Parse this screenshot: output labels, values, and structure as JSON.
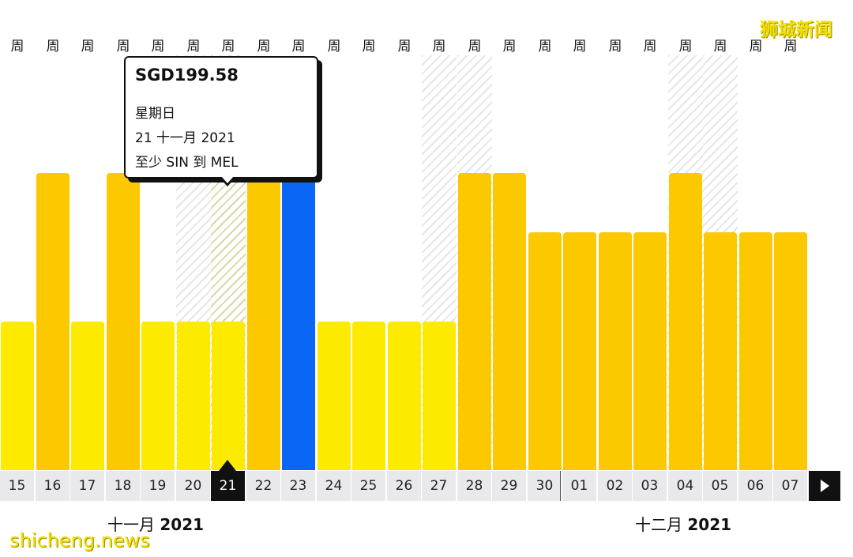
{
  "week_header_label": "周",
  "tooltip": {
    "price": "SGD199.58",
    "weekday": "星期日",
    "date": "21 十一月 2021",
    "route": "至少 SIN 到 MEL"
  },
  "months": [
    {
      "name": "十一月",
      "year": "2021"
    },
    {
      "name": "十二月",
      "year": "2021"
    }
  ],
  "watermarks": {
    "top_right": "狮城新闻",
    "bottom_left": "shicheng.news"
  },
  "colors": {
    "cheap": "#fcea00",
    "mid": "#fcc800",
    "selected": "#0a66f5",
    "selected_cap": "#9cc0f5"
  },
  "chart_data": {
    "type": "bar",
    "categories": [
      "15",
      "16",
      "17",
      "18",
      "19",
      "20",
      "21",
      "22",
      "23",
      "24",
      "25",
      "26",
      "27",
      "28",
      "29",
      "30",
      "01",
      "02",
      "03",
      "04",
      "05",
      "06",
      "07"
    ],
    "values": [
      1,
      2,
      1,
      2,
      1,
      1,
      1,
      2,
      2,
      1,
      1,
      1,
      1,
      2,
      2,
      1.6,
      1.6,
      1.6,
      1.6,
      2,
      1.6,
      1.6,
      1.6
    ],
    "tiers": [
      "cheap",
      "mid",
      "cheap",
      "mid",
      "cheap",
      "cheap",
      "cheap",
      "mid",
      "selected",
      "cheap",
      "cheap",
      "cheap",
      "cheap",
      "mid",
      "mid",
      "mid",
      "mid",
      "mid",
      "mid",
      "mid",
      "mid",
      "mid",
      "mid"
    ],
    "hatched": [
      "20",
      "21",
      "27",
      "28",
      "04",
      "05"
    ],
    "selected_date": "21",
    "highlighted_date": "23",
    "ylim": [
      0,
      2.9
    ]
  },
  "nav": {
    "next_icon": "chevron-right-icon"
  }
}
